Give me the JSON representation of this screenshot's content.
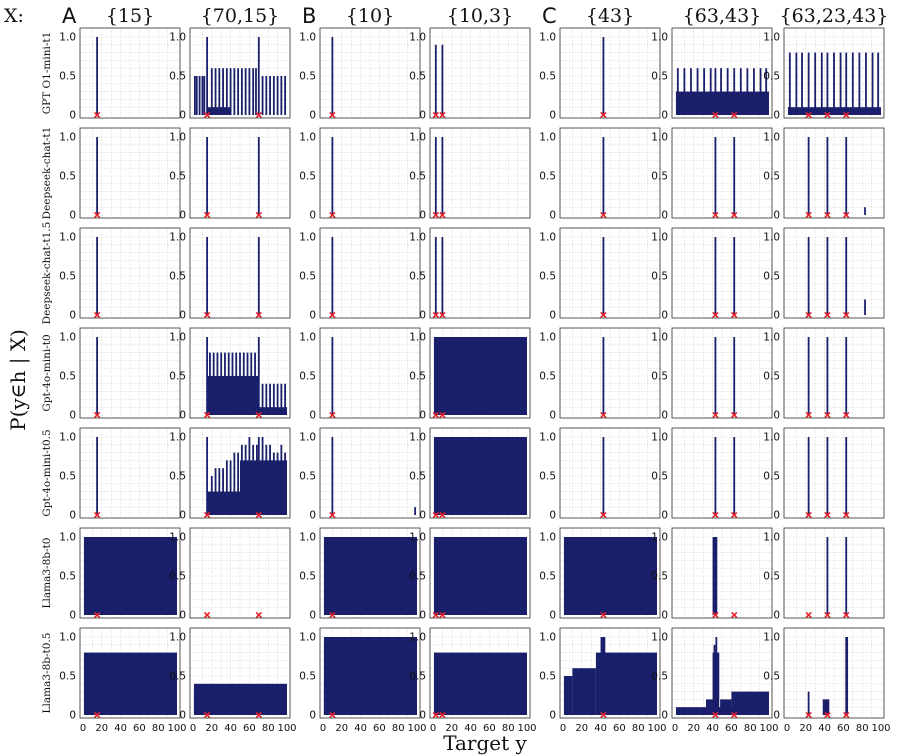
{
  "figure": {
    "x_prefix": "X:",
    "y_axis_label": "P(y∈h | X)",
    "x_axis_label": "Target y",
    "ytick_labels": [
      "0",
      "0.5",
      "1.0"
    ],
    "xtick_labels": [
      "0",
      "20",
      "40",
      "60",
      "80",
      "100"
    ],
    "group_letters": [
      "A",
      "B",
      "C"
    ],
    "colors": {
      "bar": "#1a1f6b",
      "marker": "#e8202a",
      "grid": "#d3d3d3",
      "frame": "#444444"
    }
  },
  "chart_data": {
    "type": "bar",
    "xlim": [
      0,
      100
    ],
    "ylim": [
      0,
      1.0
    ],
    "grid": true,
    "columns": [
      {
        "group": "A",
        "label": "{15}",
        "examples": [
          15
        ]
      },
      {
        "group": "A",
        "label": "{70,15}",
        "examples": [
          15,
          70
        ]
      },
      {
        "group": "B",
        "label": "{10}",
        "examples": [
          10
        ]
      },
      {
        "group": "B",
        "label": "{10,3}",
        "examples": [
          3,
          10
        ]
      },
      {
        "group": "C",
        "label": "{43}",
        "examples": [
          43
        ]
      },
      {
        "group": "C",
        "label": "{63,43}",
        "examples": [
          43,
          63
        ]
      },
      {
        "group": "C",
        "label": "{63,23,43}",
        "examples": [
          23,
          43,
          63
        ]
      }
    ],
    "rows": [
      {
        "model": "GPT O1-mini-t1",
        "panels": [
          {
            "spikes": [
              [
                15,
                1.0
              ]
            ]
          },
          {
            "blocks": [
              [
                15,
                40,
                0.1
              ]
            ],
            "spikes": [
              [
                15,
                1.0
              ],
              [
                70,
                1.0
              ],
              [
                2,
                0.5
              ],
              [
                4,
                0.5
              ],
              [
                7,
                0.5
              ],
              [
                10,
                0.5
              ],
              [
                12,
                0.5
              ],
              [
                20,
                0.6
              ],
              [
                24,
                0.6
              ],
              [
                28,
                0.6
              ],
              [
                32,
                0.6
              ],
              [
                36,
                0.6
              ],
              [
                40,
                0.6
              ],
              [
                44,
                0.6
              ],
              [
                48,
                0.6
              ],
              [
                52,
                0.6
              ],
              [
                56,
                0.6
              ],
              [
                60,
                0.6
              ],
              [
                64,
                0.6
              ],
              [
                67,
                0.6
              ],
              [
                74,
                0.5
              ],
              [
                78,
                0.5
              ],
              [
                82,
                0.5
              ],
              [
                86,
                0.5
              ],
              [
                90,
                0.5
              ],
              [
                94,
                0.5
              ],
              [
                98,
                0.5
              ]
            ]
          },
          {
            "spikes": [
              [
                10,
                1.0
              ]
            ]
          },
          {
            "spikes": [
              [
                3,
                0.9
              ],
              [
                10,
                0.9
              ]
            ]
          },
          {
            "spikes": [
              [
                43,
                1.0
              ]
            ]
          },
          {
            "blocks": [
              [
                1,
                100,
                0.3
              ]
            ],
            "spikes": [
              [
                3,
                0.6
              ],
              [
                10,
                0.6
              ],
              [
                17,
                0.6
              ],
              [
                24,
                0.6
              ],
              [
                31,
                0.6
              ],
              [
                38,
                0.6
              ],
              [
                43,
                0.6
              ],
              [
                49,
                0.6
              ],
              [
                56,
                0.6
              ],
              [
                63,
                0.6
              ],
              [
                70,
                0.6
              ],
              [
                77,
                0.6
              ],
              [
                84,
                0.6
              ],
              [
                91,
                0.6
              ],
              [
                97,
                0.6
              ]
            ]
          },
          {
            "blocks": [
              [
                1,
                100,
                0.1
              ]
            ],
            "spikes": [
              [
                3,
                0.8
              ],
              [
                10,
                0.8
              ],
              [
                16,
                0.8
              ],
              [
                23,
                0.8
              ],
              [
                30,
                0.8
              ],
              [
                37,
                0.8
              ],
              [
                43,
                0.8
              ],
              [
                50,
                0.8
              ],
              [
                57,
                0.8
              ],
              [
                63,
                0.8
              ],
              [
                70,
                0.8
              ],
              [
                77,
                0.8
              ],
              [
                84,
                0.8
              ],
              [
                91,
                0.8
              ],
              [
                97,
                0.8
              ]
            ]
          }
        ]
      },
      {
        "model": "Deepseek-chat-t1",
        "panels": [
          {
            "spikes": [
              [
                15,
                1.0
              ]
            ]
          },
          {
            "spikes": [
              [
                15,
                1.0
              ],
              [
                70,
                1.0
              ]
            ]
          },
          {
            "spikes": [
              [
                10,
                1.0
              ]
            ]
          },
          {
            "spikes": [
              [
                3,
                1.0
              ],
              [
                10,
                1.0
              ]
            ]
          },
          {
            "spikes": [
              [
                43,
                1.0
              ]
            ]
          },
          {
            "spikes": [
              [
                43,
                1.0
              ],
              [
                63,
                1.0
              ]
            ]
          },
          {
            "spikes": [
              [
                23,
                1.0
              ],
              [
                43,
                1.0
              ],
              [
                63,
                1.0
              ],
              [
                83,
                0.1
              ]
            ]
          }
        ]
      },
      {
        "model": "Deepseek-chat-t1.5",
        "panels": [
          {
            "spikes": [
              [
                15,
                1.0
              ]
            ]
          },
          {
            "spikes": [
              [
                15,
                1.0
              ],
              [
                70,
                1.0
              ]
            ]
          },
          {
            "spikes": [
              [
                10,
                1.0
              ]
            ]
          },
          {
            "spikes": [
              [
                3,
                1.0
              ],
              [
                10,
                1.0
              ]
            ]
          },
          {
            "spikes": [
              [
                43,
                1.0
              ]
            ]
          },
          {
            "spikes": [
              [
                43,
                1.0
              ],
              [
                63,
                1.0
              ]
            ]
          },
          {
            "spikes": [
              [
                23,
                1.0
              ],
              [
                43,
                1.0
              ],
              [
                63,
                1.0
              ],
              [
                83,
                0.2
              ]
            ]
          }
        ]
      },
      {
        "model": "Gpt-4o-mini-t0",
        "panels": [
          {
            "spikes": [
              [
                15,
                1.0
              ]
            ]
          },
          {
            "blocks": [
              [
                15,
                70,
                0.5
              ],
              [
                15,
                45,
                0.3
              ],
              [
                70,
                100,
                0.1
              ]
            ],
            "spikes": [
              [
                15,
                1.0
              ],
              [
                70,
                1.0
              ],
              [
                18,
                0.8
              ],
              [
                22,
                0.8
              ],
              [
                26,
                0.8
              ],
              [
                30,
                0.8
              ],
              [
                34,
                0.8
              ],
              [
                38,
                0.8
              ],
              [
                42,
                0.8
              ],
              [
                46,
                0.8
              ],
              [
                50,
                0.8
              ],
              [
                54,
                0.8
              ],
              [
                58,
                0.8
              ],
              [
                62,
                0.8
              ],
              [
                66,
                0.8
              ],
              [
                74,
                0.4
              ],
              [
                78,
                0.4
              ],
              [
                82,
                0.4
              ],
              [
                86,
                0.4
              ],
              [
                90,
                0.4
              ],
              [
                94,
                0.4
              ],
              [
                98,
                0.4
              ]
            ]
          },
          {
            "spikes": [
              [
                10,
                1.0
              ]
            ]
          },
          {
            "blocks": [
              [
                1,
                100,
                1.0
              ]
            ]
          },
          {
            "spikes": [
              [
                43,
                1.0
              ]
            ]
          },
          {
            "spikes": [
              [
                43,
                1.0
              ],
              [
                63,
                1.0
              ]
            ]
          },
          {
            "spikes": [
              [
                23,
                1.0
              ],
              [
                43,
                1.0
              ],
              [
                63,
                1.0
              ]
            ]
          }
        ]
      },
      {
        "model": "Gpt-4o-mini-t0.5",
        "panels": [
          {
            "spikes": [
              [
                15,
                1.0
              ]
            ]
          },
          {
            "blocks": [
              [
                15,
                100,
                0.3
              ],
              [
                15,
                100,
                0.1
              ],
              [
                50,
                100,
                0.7
              ]
            ],
            "spikes": [
              [
                15,
                1.0
              ],
              [
                70,
                1.0
              ],
              [
                20,
                0.5
              ],
              [
                24,
                0.6
              ],
              [
                28,
                0.6
              ],
              [
                32,
                0.6
              ],
              [
                36,
                0.7
              ],
              [
                40,
                0.7
              ],
              [
                44,
                0.8
              ],
              [
                48,
                0.8
              ],
              [
                52,
                0.9
              ],
              [
                56,
                0.9
              ],
              [
                60,
                1.0
              ],
              [
                64,
                0.9
              ],
              [
                68,
                0.9
              ],
              [
                74,
                1.0
              ],
              [
                78,
                0.9
              ],
              [
                82,
                0.9
              ],
              [
                86,
                0.8
              ],
              [
                90,
                0.8
              ],
              [
                94,
                0.9
              ],
              [
                98,
                0.8
              ]
            ]
          },
          {
            "spikes": [
              [
                10,
                1.0
              ],
              [
                98,
                0.1
              ]
            ]
          },
          {
            "blocks": [
              [
                1,
                100,
                1.0
              ]
            ]
          },
          {
            "spikes": [
              [
                43,
                1.0
              ]
            ]
          },
          {
            "spikes": [
              [
                43,
                1.0
              ],
              [
                63,
                1.0
              ]
            ]
          },
          {
            "spikes": [
              [
                23,
                1.0
              ],
              [
                43,
                1.0
              ],
              [
                63,
                1.0
              ]
            ]
          }
        ]
      },
      {
        "model": "Llama3-8b-t0",
        "panels": [
          {
            "blocks": [
              [
                1,
                100,
                1.0
              ]
            ]
          },
          {},
          {
            "blocks": [
              [
                1,
                100,
                1.0
              ]
            ]
          },
          {
            "blocks": [
              [
                1,
                100,
                1.0
              ]
            ]
          },
          {
            "blocks": [
              [
                1,
                100,
                1.0
              ]
            ]
          },
          {
            "blocks": [
              [
                40,
                45,
                1.0
              ]
            ]
          },
          {
            "spikes": [
              [
                43,
                1.0
              ],
              [
                63,
                1.0
              ]
            ]
          }
        ]
      },
      {
        "model": "Llama3-8b-t0.5",
        "panels": [
          {
            "blocks": [
              [
                1,
                100,
                0.8
              ]
            ]
          },
          {
            "blocks": [
              [
                1,
                100,
                0.3
              ],
              [
                1,
                100,
                0.4
              ]
            ]
          },
          {
            "blocks": [
              [
                1,
                100,
                0.9
              ],
              [
                1,
                100,
                1.0
              ],
              [
                1,
                4,
                0.4
              ]
            ]
          },
          {
            "blocks": [
              [
                1,
                100,
                0.8
              ]
            ]
          },
          {
            "blocks": [
              [
                1,
                10,
                0.5
              ],
              [
                10,
                35,
                0.6
              ],
              [
                35,
                100,
                0.8
              ],
              [
                40,
                45,
                1.0
              ]
            ]
          },
          {
            "blocks": [
              [
                1,
                100,
                0.1
              ],
              [
                33,
                43,
                0.2
              ],
              [
                48,
                60,
                0.2
              ],
              [
                60,
                100,
                0.3
              ],
              [
                40,
                47,
                0.8
              ]
            ],
            "spikes": [
              [
                42,
                0.9
              ],
              [
                44,
                1.0
              ],
              [
                46,
                0.8
              ]
            ]
          },
          {
            "blocks": [
              [
                38,
                45,
                0.2
              ]
            ],
            "spikes": [
              [
                23,
                0.3
              ],
              [
                43,
                0.2
              ],
              [
                63,
                1.0
              ],
              [
                64,
                1.0
              ]
            ]
          }
        ]
      }
    ]
  }
}
